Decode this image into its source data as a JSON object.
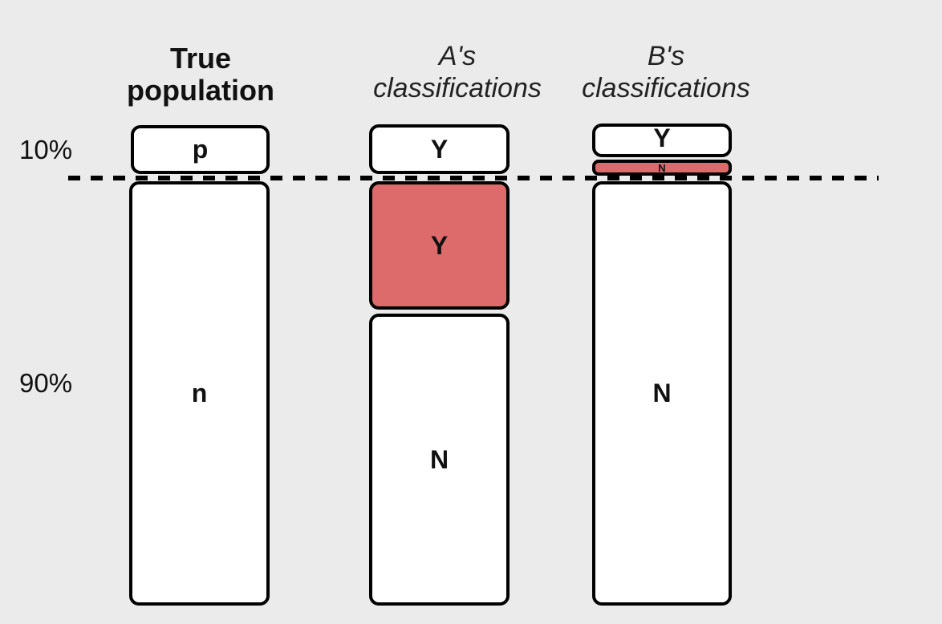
{
  "columns": {
    "true_population": {
      "title_line1": "True",
      "title_line2": "population",
      "top_label": "p",
      "bottom_label": "n"
    },
    "a": {
      "title_line1": "A's",
      "title_line2": "classifications",
      "top_label": "Y",
      "false_pos_label": "Y",
      "bottom_label": "N"
    },
    "b": {
      "title_line1": "B's",
      "title_line2": "classifications",
      "top_label": "Y",
      "false_neg_label": "N",
      "bottom_label": "N"
    }
  },
  "row_labels": {
    "top": "10%",
    "bottom": "90%"
  },
  "colors": {
    "background": "#ebebeb",
    "highlight": "#dd6b6b",
    "box_fill": "#ffffff",
    "outline": "#000000"
  }
}
